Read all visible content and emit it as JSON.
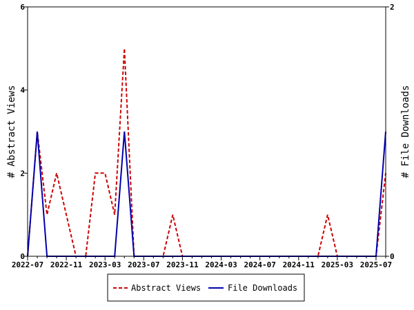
{
  "chart_data": {
    "type": "line",
    "x": [
      "2022-07",
      "2022-08",
      "2022-09",
      "2022-10",
      "2022-11",
      "2022-12",
      "2023-01",
      "2023-02",
      "2023-03",
      "2023-04",
      "2023-05",
      "2023-06",
      "2023-07",
      "2023-08",
      "2023-09",
      "2023-10",
      "2023-11",
      "2023-12",
      "2024-01",
      "2024-02",
      "2024-03",
      "2024-04",
      "2024-05",
      "2024-06",
      "2024-07",
      "2024-08",
      "2024-09",
      "2024-10",
      "2024-11",
      "2024-12",
      "2025-01",
      "2025-02",
      "2025-03",
      "2025-04",
      "2025-05",
      "2025-06",
      "2025-07",
      "2025-08"
    ],
    "x_tick_labels": [
      "2022-07",
      "2022-11",
      "2023-03",
      "2023-07",
      "2023-11",
      "2024-03",
      "2024-07",
      "2024-11",
      "2025-03",
      "2025-07"
    ],
    "series": [
      {
        "name": "Abstract Views",
        "axis": "left",
        "color": "#cc0000",
        "dash": "dashed",
        "values": [
          0,
          3,
          1,
          2,
          1,
          0,
          0,
          2,
          2,
          1,
          5,
          0,
          0,
          0,
          0,
          1,
          0,
          0,
          0,
          0,
          0,
          0,
          0,
          0,
          0,
          0,
          0,
          0,
          0,
          0,
          0,
          1,
          0,
          0,
          0,
          0,
          0,
          2
        ]
      },
      {
        "name": "File Downloads",
        "axis": "right",
        "color": "#0000aa",
        "dash": "solid",
        "values": [
          0,
          1,
          0,
          0,
          0,
          0,
          0,
          0,
          0,
          0,
          1,
          0,
          0,
          0,
          0,
          0,
          0,
          0,
          0,
          0,
          0,
          0,
          0,
          0,
          0,
          0,
          0,
          0,
          0,
          0,
          0,
          0,
          0,
          0,
          0,
          0,
          0,
          1
        ]
      }
    ],
    "left_axis": {
      "label": "# Abstract Views",
      "ylim": [
        0,
        6
      ],
      "ticks": [
        "0",
        "2",
        "4",
        "6"
      ]
    },
    "right_axis": {
      "label": "# File Downloads",
      "ylim": [
        0,
        2
      ],
      "ticks": [
        "0",
        "2"
      ]
    },
    "grid": false,
    "legend_position": "bottom-center",
    "legend": [
      "Abstract Views",
      "File Downloads"
    ]
  }
}
